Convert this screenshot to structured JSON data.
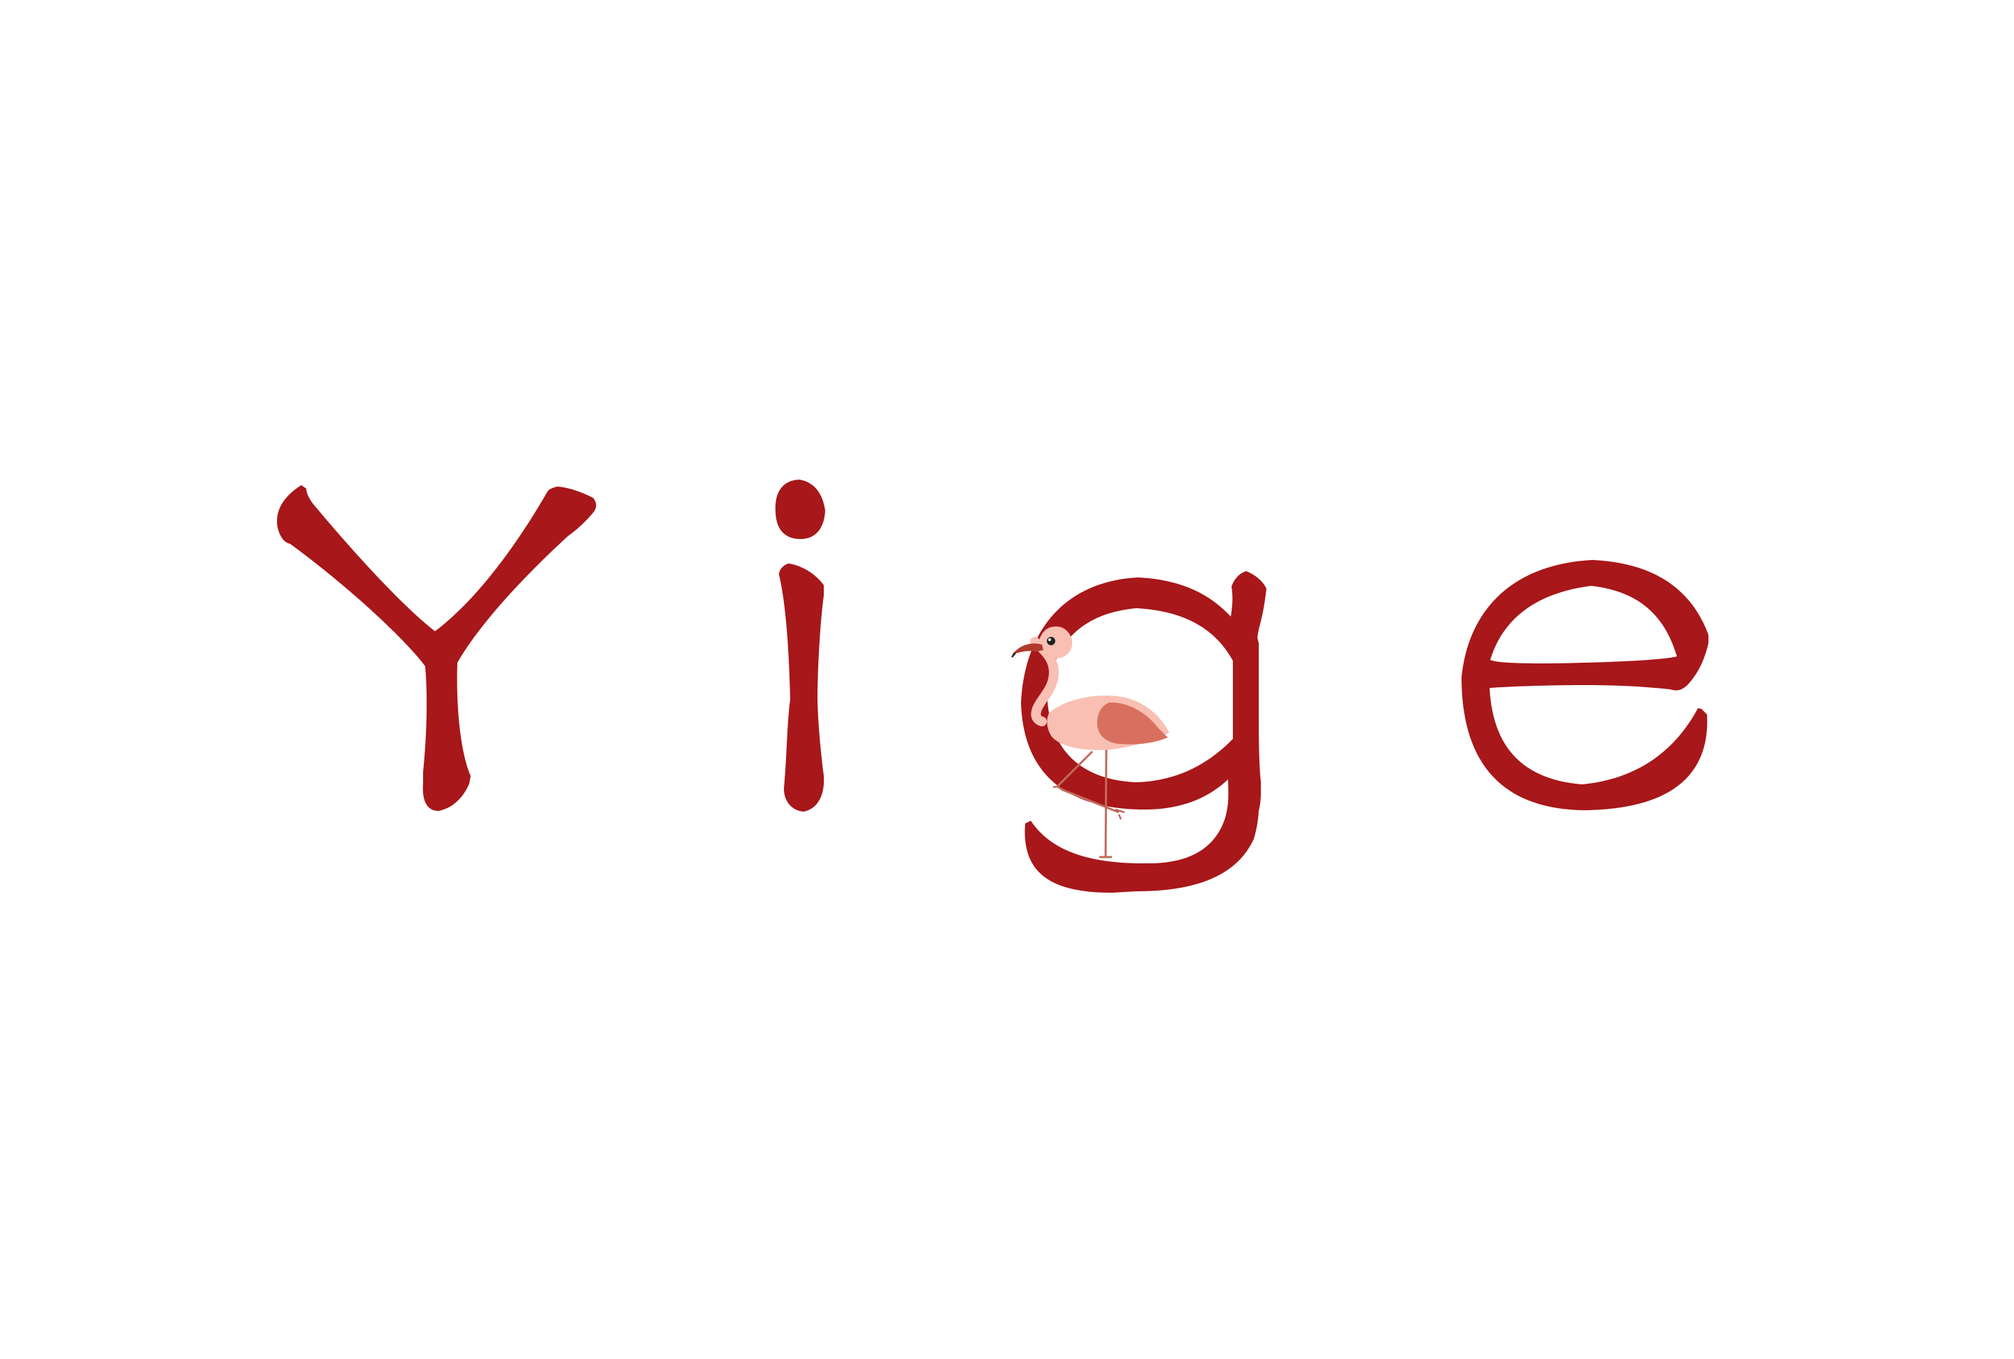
{
  "logo": {
    "wordmark": "Yige",
    "letter_color": "#a8171a",
    "mascot_icon": "flamingo-icon",
    "flamingo_colors": {
      "body": "#f9bfb3",
      "wing": "#d9705f",
      "beak": "#b03a2e",
      "legs": "#c26a5a",
      "eye": "#222222"
    }
  }
}
